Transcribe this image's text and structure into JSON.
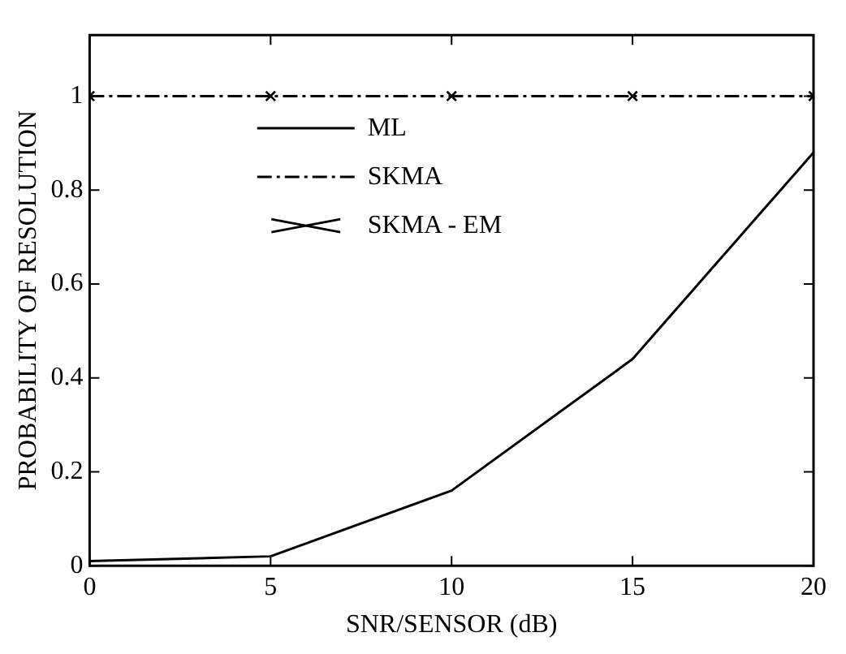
{
  "chart_data": {
    "type": "line",
    "xlabel": "SNR/SENSOR (dB)",
    "ylabel": "PROBABILITY OF RESOLUTION",
    "x": [
      0,
      5,
      10,
      15,
      20
    ],
    "series": [
      {
        "name": "ML",
        "color": "#000000",
        "values": [
          0.01,
          0.02,
          0.16,
          0.44,
          0.88
        ],
        "line_style": "solid",
        "marker": "none"
      },
      {
        "name": "SKMA",
        "color": "#000000",
        "values": [
          1,
          1,
          1,
          1,
          1
        ],
        "line_style": "dashed",
        "marker": "none"
      },
      {
        "name": "SKMA - EM",
        "color": "#000000",
        "type": "scatter",
        "values": [
          1,
          1,
          1,
          1,
          1
        ],
        "marker": "cross"
      }
    ],
    "xlim": [
      0,
      20
    ],
    "xticks": [
      0,
      5,
      10,
      15,
      20
    ],
    "ylim": [
      0,
      1.13
    ],
    "yticks": [
      0,
      0.2,
      0.4,
      0.6,
      0.8,
      1
    ],
    "grid": false,
    "legend": "top left"
  }
}
